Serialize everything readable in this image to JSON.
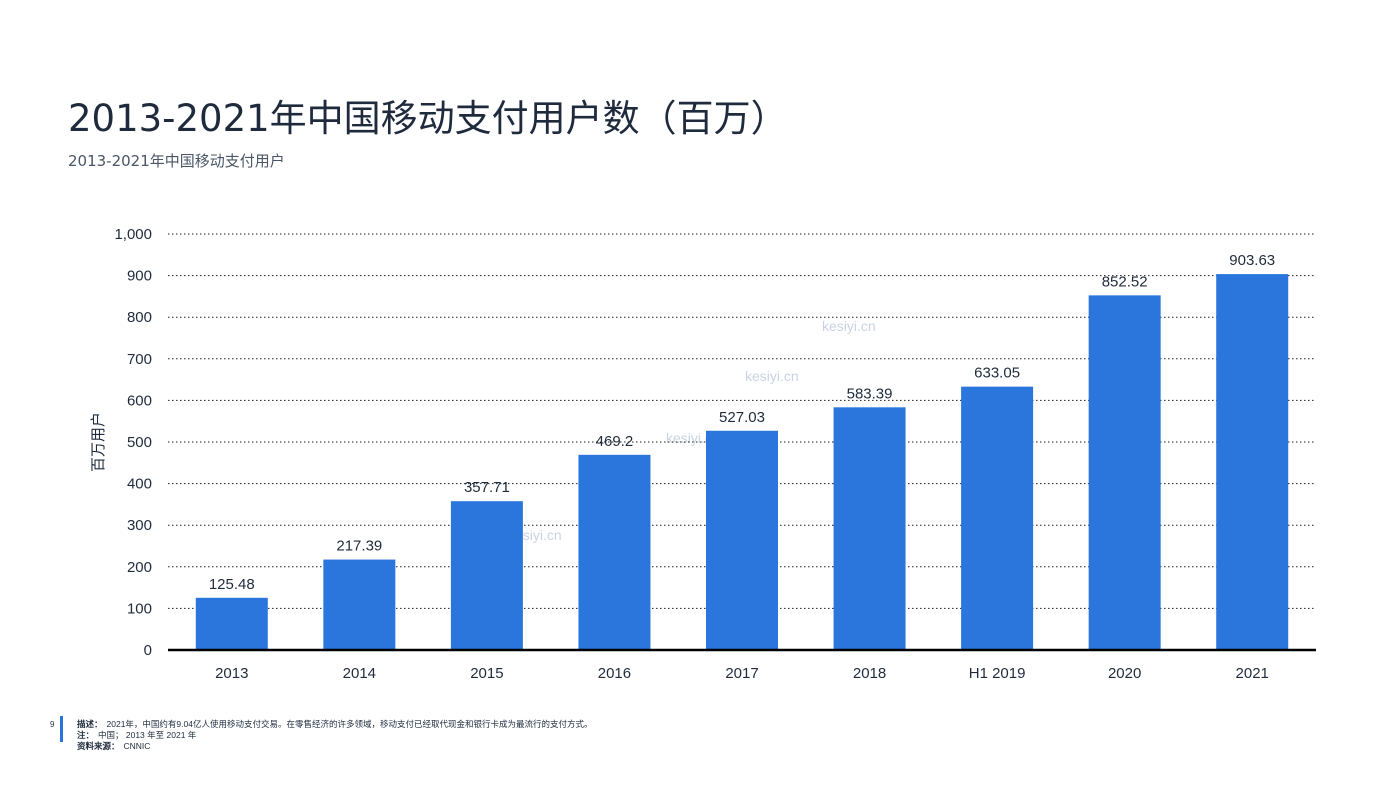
{
  "page": {
    "title": "2013-2021年中国移动支付用户数（百万）",
    "subtitle": "2013-2021年中国移动支付用户",
    "page_number": "9"
  },
  "footer": {
    "description_label": "描述：",
    "description": "2021年，中国约有9.04亿人使用移动支付交易。在零售经济的许多领域，移动支付已经取代现金和银行卡成为最流行的支付方式。",
    "note_label": "注：",
    "note": "中国； 2013 年至 2021 年",
    "source_label": "资料来源：",
    "source": "CNNIC"
  },
  "watermark": {
    "text": "kesiyi.cn"
  },
  "colors": {
    "bar": "#2a76dd",
    "text": "#1f2b3d",
    "grid": "#222222"
  },
  "chart_data": {
    "type": "bar",
    "title": "2013-2021年中国移动支付用户数（百万）",
    "subtitle": "2013-2021年中国移动支付用户",
    "xlabel": "",
    "ylabel": "百万用户",
    "ylim": [
      0,
      1000
    ],
    "yticks": [
      0,
      100,
      200,
      300,
      400,
      500,
      600,
      700,
      800,
      900,
      1000
    ],
    "ytick_labels": [
      "0",
      "100",
      "200",
      "300",
      "400",
      "500",
      "600",
      "700",
      "800",
      "900",
      "1,000"
    ],
    "categories": [
      "2013",
      "2014",
      "2015",
      "2016",
      "2017",
      "2018",
      "H1 2019",
      "2020",
      "2021"
    ],
    "values": [
      125.48,
      217.39,
      357.71,
      469.2,
      527.03,
      583.39,
      633.05,
      852.52,
      903.63
    ],
    "value_labels": [
      "125.48",
      "217.39",
      "357.71",
      "469.2",
      "527.03",
      "583.39",
      "633.05",
      "852.52",
      "903.63"
    ],
    "grid": "dotted horizontal",
    "legend": "none"
  }
}
